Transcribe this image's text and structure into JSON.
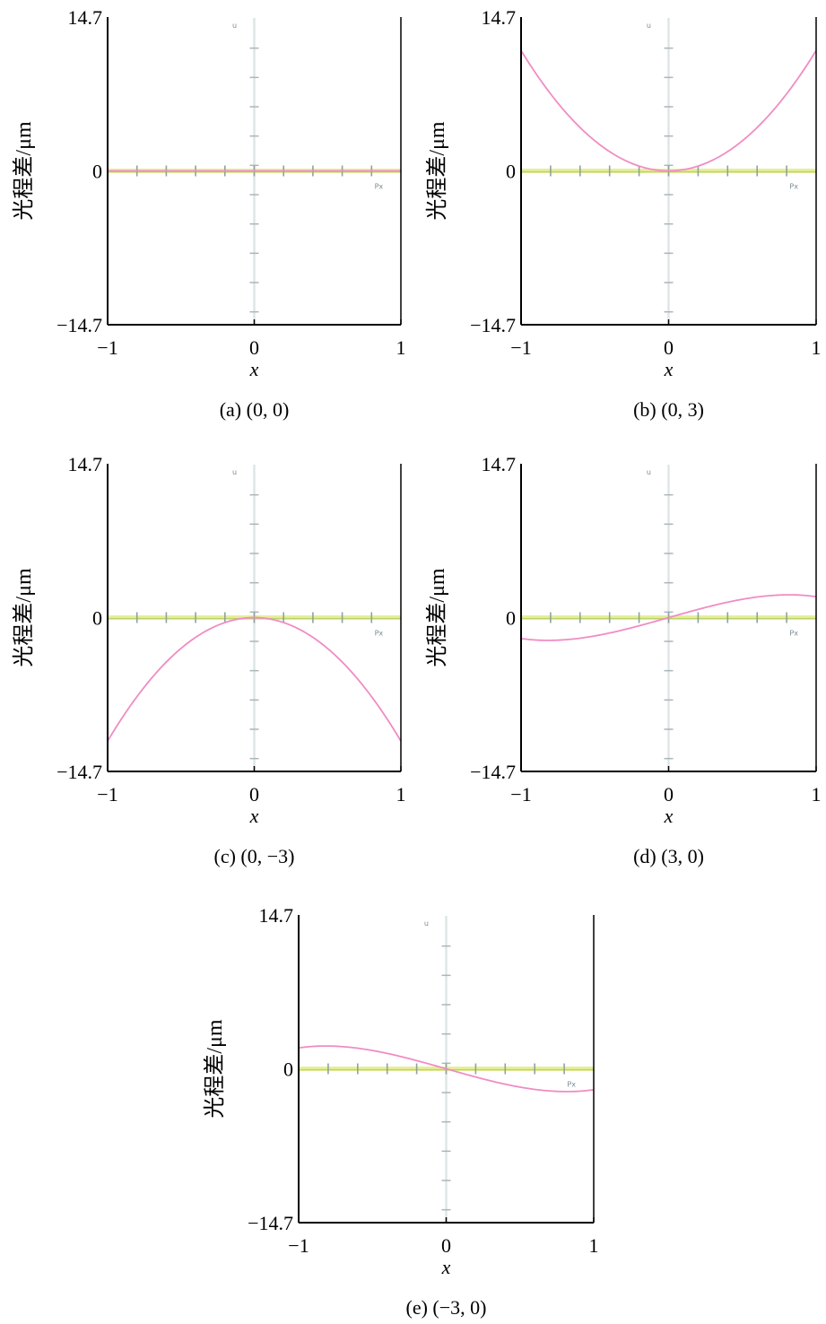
{
  "chart_data": [
    {
      "id": "a",
      "type": "line",
      "caption": "(a) (0, 0)",
      "xlabel": "x",
      "ylabel": "光程差/μm",
      "xlim": [
        -1,
        1
      ],
      "ylim": [
        -14.7,
        14.7
      ],
      "xticks": [
        "−1",
        "0",
        "1"
      ],
      "yticks": [
        "−14.7",
        "0",
        "14.7"
      ],
      "marker_labels": {
        "vertical": "u",
        "horizontal": "Px"
      },
      "curve": {
        "color": "#f08cc4",
        "coefficients": {
          "cubic": 0,
          "quadratic": 0,
          "linear": 0
        }
      },
      "series": [
        {
          "x": [
            -1,
            -0.5,
            0,
            0.5,
            1
          ],
          "y": [
            0,
            0,
            0,
            0,
            0
          ]
        }
      ]
    },
    {
      "id": "b",
      "type": "line",
      "caption": "(b) (0, 3)",
      "xlabel": "x",
      "ylabel": "光程差/μm",
      "xlim": [
        -1,
        1
      ],
      "ylim": [
        -14.7,
        14.7
      ],
      "xticks": [
        "−1",
        "0",
        "1"
      ],
      "yticks": [
        "−14.7",
        "0",
        "14.7"
      ],
      "marker_labels": {
        "vertical": "u",
        "horizontal": "Px"
      },
      "curve": {
        "color": "#f08cc4",
        "coefficients": {
          "cubic": 0,
          "quadratic": 11.5,
          "linear": 0
        }
      },
      "series": [
        {
          "x": [
            -1,
            -0.75,
            -0.5,
            -0.25,
            0,
            0.25,
            0.5,
            0.75,
            1
          ],
          "y": [
            11.5,
            6.5,
            2.9,
            0.7,
            0,
            0.7,
            2.9,
            6.5,
            11.5
          ]
        }
      ]
    },
    {
      "id": "c",
      "type": "line",
      "caption": "(c) (0, −3)",
      "xlabel": "x",
      "ylabel": "光程差/μm",
      "xlim": [
        -1,
        1
      ],
      "ylim": [
        -14.7,
        14.7
      ],
      "xticks": [
        "−1",
        "0",
        "1"
      ],
      "yticks": [
        "−14.7",
        "0",
        "14.7"
      ],
      "marker_labels": {
        "vertical": "u",
        "horizontal": "Px"
      },
      "curve": {
        "color": "#f08cc4",
        "coefficients": {
          "cubic": 0,
          "quadratic": -11.8,
          "linear": 0
        }
      },
      "series": [
        {
          "x": [
            -1,
            -0.75,
            -0.5,
            -0.25,
            0,
            0.25,
            0.5,
            0.75,
            1
          ],
          "y": [
            -11.8,
            -6.6,
            -2.9,
            -0.7,
            0,
            -0.7,
            -2.9,
            -6.6,
            -11.8
          ]
        }
      ]
    },
    {
      "id": "d",
      "type": "line",
      "caption": "(d) (3, 0)",
      "xlabel": "x",
      "ylabel": "光程差/μm",
      "xlim": [
        -1,
        1
      ],
      "ylim": [
        -14.7,
        14.7
      ],
      "xticks": [
        "−1",
        "0",
        "1"
      ],
      "yticks": [
        "−14.7",
        "0",
        "14.7"
      ],
      "marker_labels": {
        "vertical": "u",
        "horizontal": "Px"
      },
      "curve": {
        "color": "#f08cc4",
        "coefficients": {
          "cubic": -2,
          "quadratic": 0,
          "linear": 4
        }
      },
      "series": [
        {
          "x": [
            -1,
            -0.75,
            -0.5,
            -0.25,
            0,
            0.25,
            0.5,
            0.75,
            1
          ],
          "y": [
            -2.0,
            -2.2,
            -1.75,
            -0.97,
            0,
            0.97,
            1.75,
            2.2,
            2.0
          ]
        }
      ]
    },
    {
      "id": "e",
      "type": "line",
      "caption": "(e) (−3, 0)",
      "xlabel": "x",
      "ylabel": "光程差/μm",
      "xlim": [
        -1,
        1
      ],
      "ylim": [
        -14.7,
        14.7
      ],
      "xticks": [
        "−1",
        "0",
        "1"
      ],
      "yticks": [
        "−14.7",
        "0",
        "14.7"
      ],
      "marker_labels": {
        "vertical": "u",
        "horizontal": "Px"
      },
      "curve": {
        "color": "#f08cc4",
        "coefficients": {
          "cubic": 2,
          "quadratic": 0,
          "linear": -4
        }
      },
      "series": [
        {
          "x": [
            -1,
            -0.75,
            -0.5,
            -0.25,
            0,
            0.25,
            0.5,
            0.75,
            1
          ],
          "y": [
            2.0,
            2.2,
            1.75,
            0.97,
            0,
            -0.97,
            -1.75,
            -2.2,
            -2.0
          ]
        }
      ]
    }
  ]
}
